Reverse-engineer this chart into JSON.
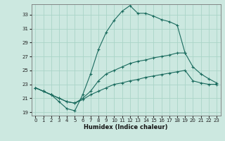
{
  "xlabel": "Humidex (Indice chaleur)",
  "bg_color": "#cce8e0",
  "grid_color": "#aad4c8",
  "line_color": "#1a6b5e",
  "xlim": [
    -0.5,
    23.5
  ],
  "ylim": [
    18.5,
    34.5
  ],
  "yticks": [
    19,
    21,
    23,
    25,
    27,
    29,
    31,
    33
  ],
  "xticks": [
    0,
    1,
    2,
    3,
    4,
    5,
    6,
    7,
    8,
    9,
    10,
    11,
    12,
    13,
    14,
    15,
    16,
    17,
    18,
    19,
    20,
    21,
    22,
    23
  ],
  "line1_x": [
    0,
    1,
    2,
    3,
    4,
    5,
    6,
    7,
    8,
    9,
    10,
    11,
    12,
    13,
    14,
    15,
    16,
    17,
    18,
    19
  ],
  "line1_y": [
    22.5,
    22.0,
    21.5,
    20.5,
    19.5,
    19.2,
    21.5,
    24.5,
    28.0,
    30.5,
    32.2,
    33.5,
    34.3,
    33.2,
    33.2,
    32.8,
    32.3,
    32.0,
    31.5,
    27.5
  ],
  "line2_x": [
    0,
    1,
    2,
    3,
    4,
    5,
    6,
    7,
    8,
    9,
    10,
    11,
    12,
    13,
    14,
    15,
    16,
    17,
    18,
    19,
    20,
    21,
    22,
    23
  ],
  "line2_y": [
    22.5,
    22.0,
    21.5,
    21.0,
    20.5,
    20.3,
    21.0,
    22.0,
    23.5,
    24.5,
    25.0,
    25.5,
    26.0,
    26.3,
    26.5,
    26.8,
    27.0,
    27.2,
    27.5,
    27.5,
    25.5,
    24.5,
    23.8,
    23.2
  ],
  "line3_x": [
    0,
    1,
    2,
    3,
    4,
    5,
    6,
    7,
    8,
    9,
    10,
    11,
    12,
    13,
    14,
    15,
    16,
    17,
    18,
    19,
    20,
    21,
    22,
    23
  ],
  "line3_y": [
    22.5,
    22.0,
    21.5,
    21.0,
    20.5,
    20.3,
    20.8,
    21.5,
    22.0,
    22.5,
    23.0,
    23.2,
    23.5,
    23.7,
    24.0,
    24.2,
    24.4,
    24.6,
    24.8,
    25.0,
    23.5,
    23.2,
    23.0,
    23.0
  ]
}
